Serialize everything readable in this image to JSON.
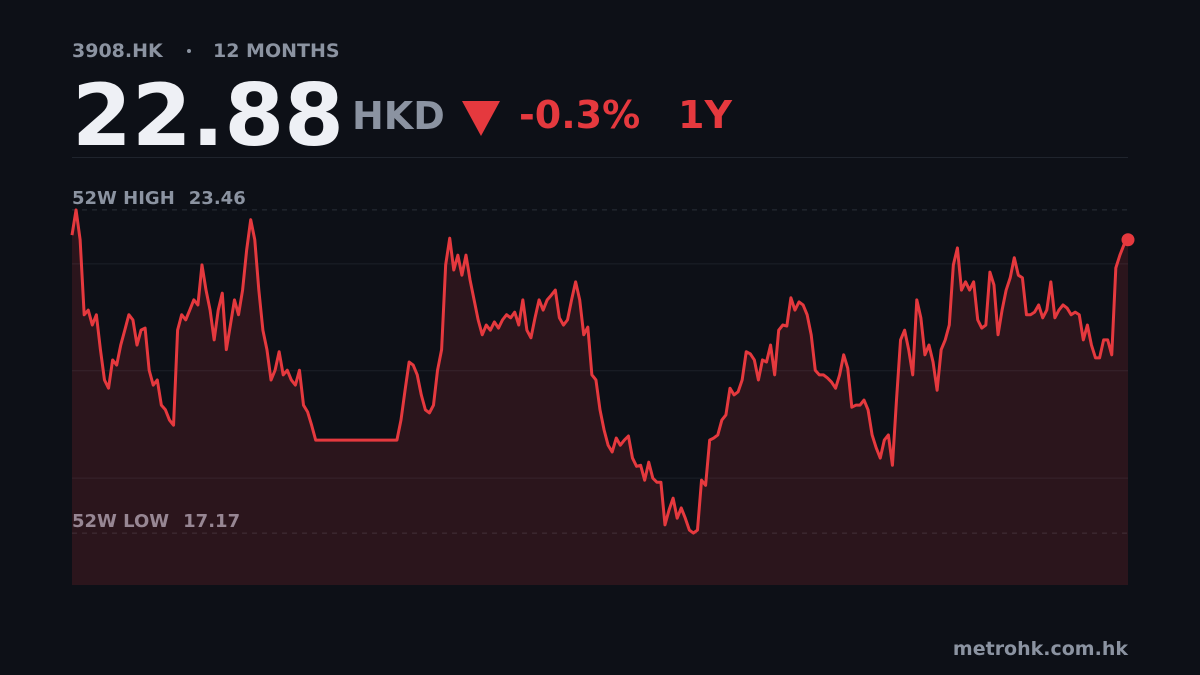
{
  "chart_data": {
    "type": "line",
    "ticker": "3908.HK",
    "period": "12 MONTHS",
    "price": 22.88,
    "currency": "HKD",
    "change": "-0.3%",
    "range": "1Y",
    "color": "#e5393e",
    "grid": true,
    "ylim": [
      16.16,
      24.49
    ],
    "yticks": [
      18.24,
      20.33,
      22.41
    ],
    "annotations": [
      {
        "label": "52W HIGH",
        "value": 23.46
      },
      {
        "label": "52W LOW",
        "value": 17.17
      }
    ],
    "values": [
      22.97,
      23.46,
      22.88,
      21.42,
      21.51,
      21.22,
      21.42,
      20.74,
      20.15,
      19.99,
      20.54,
      20.44,
      20.83,
      21.12,
      21.42,
      21.32,
      20.83,
      21.12,
      21.16,
      20.34,
      20.05,
      20.15,
      19.66,
      19.57,
      19.37,
      19.27,
      21.12,
      21.42,
      21.32,
      21.51,
      21.71,
      21.61,
      22.39,
      21.9,
      21.51,
      20.93,
      21.51,
      21.84,
      20.74,
      21.22,
      21.71,
      21.42,
      21.9,
      22.68,
      23.27,
      22.88,
      21.9,
      21.12,
      20.74,
      20.15,
      20.34,
      20.7,
      20.25,
      20.34,
      20.15,
      20.05,
      20.34,
      19.66,
      19.53,
      19.27,
      18.98,
      18.98,
      18.98,
      18.98,
      18.98,
      18.98,
      18.98,
      18.98,
      18.98,
      18.98,
      18.98,
      18.98,
      18.98,
      18.98,
      18.98,
      18.98,
      18.98,
      18.98,
      18.98,
      18.98,
      18.98,
      19.37,
      19.95,
      20.5,
      20.44,
      20.25,
      19.86,
      19.57,
      19.51,
      19.66,
      20.34,
      20.74,
      22.39,
      22.91,
      22.29,
      22.58,
      22.19,
      22.58,
      22.1,
      21.71,
      21.32,
      21.03,
      21.22,
      21.12,
      21.28,
      21.16,
      21.32,
      21.42,
      21.36,
      21.47,
      21.22,
      21.71,
      21.12,
      20.97,
      21.36,
      21.71,
      21.51,
      21.71,
      21.8,
      21.9,
      21.36,
      21.22,
      21.32,
      21.71,
      22.06,
      21.71,
      21.03,
      21.18,
      20.25,
      20.15,
      19.57,
      19.18,
      18.88,
      18.75,
      19.02,
      18.88,
      18.98,
      19.06,
      18.63,
      18.47,
      18.49,
      18.2,
      18.55,
      18.24,
      18.16,
      18.16,
      17.33,
      17.62,
      17.85,
      17.46,
      17.66,
      17.46,
      17.23,
      17.17,
      17.23,
      18.2,
      18.1,
      18.98,
      19.02,
      19.08,
      19.37,
      19.47,
      19.99,
      19.86,
      19.92,
      20.15,
      20.7,
      20.66,
      20.54,
      20.15,
      20.54,
      20.5,
      20.83,
      20.25,
      21.12,
      21.22,
      21.2,
      21.75,
      21.51,
      21.67,
      21.61,
      21.42,
      21.03,
      20.34,
      20.25,
      20.25,
      20.19,
      20.11,
      19.99,
      20.25,
      20.64,
      20.38,
      19.62,
      19.66,
      19.66,
      19.76,
      19.57,
      19.08,
      18.83,
      18.63,
      18.98,
      19.08,
      18.49,
      19.76,
      20.93,
      21.12,
      20.74,
      20.25,
      21.71,
      21.36,
      20.64,
      20.83,
      20.5,
      19.95,
      20.74,
      20.93,
      21.22,
      22.39,
      22.72,
      21.9,
      22.06,
      21.9,
      22.06,
      21.32,
      21.16,
      21.22,
      22.25,
      22.0,
      21.03,
      21.51,
      21.9,
      22.14,
      22.53,
      22.19,
      22.14,
      21.42,
      21.42,
      21.47,
      21.61,
      21.36,
      21.51,
      22.06,
      21.36,
      21.51,
      21.61,
      21.55,
      21.42,
      21.47,
      21.42,
      20.93,
      21.22,
      20.83,
      20.58,
      20.58,
      20.93,
      20.93,
      20.64,
      22.33,
      22.58,
      22.78,
      22.88
    ]
  },
  "footer": "metrohk.com.hk"
}
